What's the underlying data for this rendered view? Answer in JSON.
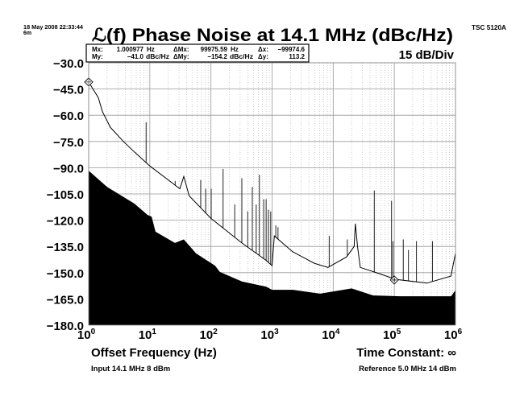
{
  "header": {
    "timestamp_line1": "18 May 2008 22:33:44",
    "timestamp_line2": "6m",
    "instrument": "TSC 5120A",
    "title": "ℒ(f) Phase Noise at 14.1 MHz (dBc/Hz)",
    "scale": "15 dB/Div"
  },
  "marker_box": {
    "mx_label": "Mx:",
    "mx_value": "1.000977",
    "mx_unit": "Hz",
    "my_label": "My:",
    "my_value": "−41.0",
    "my_unit": "dBc/Hz",
    "dmx_label": "ΔMx:",
    "dmx_value": "99975.59",
    "dmx_unit": "Hz",
    "dmy_label": "ΔMy:",
    "dmy_value": "−154.2",
    "dmy_unit": "dBc/Hz",
    "dx_label": "Δx:",
    "dx_value": "−99974.6",
    "dy_label": "Δy:",
    "dy_value": "113.2"
  },
  "footer": {
    "time_constant": "Time Constant: ∞",
    "input": "Input 14.1 MHz 8 dBm",
    "reference": "Reference 5.0 MHz 14 dBm"
  },
  "chart_data": {
    "type": "line",
    "title": "ℒ(f) Phase Noise at 14.1 MHz (dBc/Hz)",
    "xlabel": "Offset Frequency (Hz)",
    "ylabel": "",
    "xscale": "log",
    "xlim": [
      1,
      1000000
    ],
    "ylim": [
      -180,
      -30
    ],
    "grid": true,
    "xticks": [
      {
        "base": "10",
        "exp": "0"
      },
      {
        "base": "10",
        "exp": "1"
      },
      {
        "base": "10",
        "exp": "2"
      },
      {
        "base": "10",
        "exp": "3"
      },
      {
        "base": "10",
        "exp": "4"
      },
      {
        "base": "10",
        "exp": "5"
      },
      {
        "base": "10",
        "exp": "6"
      }
    ],
    "yticks": [
      "−30.0",
      "−45.0",
      "−60.0",
      "−75.0",
      "−90.0",
      "−105.0",
      "−120.0",
      "−135.0",
      "−150.0",
      "−165.0",
      "−180.0"
    ],
    "series": [
      {
        "role": "phase-noise-trace",
        "color": "#000000",
        "points": [
          [
            1,
            -41
          ],
          [
            1.44,
            -50
          ],
          [
            1.68,
            -58
          ],
          [
            2.27,
            -67
          ],
          [
            3.7,
            -75
          ],
          [
            5.6,
            -81
          ],
          [
            10,
            -89
          ],
          [
            26,
            -100
          ],
          [
            31,
            -102
          ],
          [
            36,
            -95
          ],
          [
            44,
            -106
          ],
          [
            100,
            -119
          ],
          [
            320,
            -133
          ],
          [
            800,
            -143
          ],
          [
            1000,
            -146
          ],
          [
            1090,
            -129
          ],
          [
            2160,
            -138
          ],
          [
            4900,
            -144.6
          ],
          [
            8200,
            -147
          ],
          [
            16600,
            -141
          ],
          [
            22000,
            -135
          ],
          [
            23000,
            -122
          ],
          [
            25000,
            -135
          ],
          [
            27700,
            -147
          ],
          [
            56000,
            -150.5
          ],
          [
            105000,
            -153.8
          ],
          [
            340000,
            -156
          ],
          [
            840000,
            -152
          ],
          [
            1000000,
            -139
          ]
        ]
      },
      {
        "role": "noise-floor-fill",
        "color": "#000000",
        "points": [
          [
            1,
            -91.7
          ],
          [
            2,
            -101
          ],
          [
            5.6,
            -110.5
          ],
          [
            9.2,
            -117
          ],
          [
            10.7,
            -118
          ],
          [
            12.4,
            -126.6
          ],
          [
            25.8,
            -133
          ],
          [
            36,
            -131
          ],
          [
            57,
            -139
          ],
          [
            117,
            -146
          ],
          [
            140,
            -149.6
          ],
          [
            320,
            -155
          ],
          [
            800,
            -158
          ],
          [
            1000,
            -159.8
          ],
          [
            2200,
            -159.8
          ],
          [
            6100,
            -162
          ],
          [
            20000,
            -159
          ],
          [
            45000,
            -163
          ],
          [
            125000,
            -163.5
          ],
          [
            850000,
            -163.5
          ],
          [
            1000000,
            -160
          ]
        ]
      }
    ],
    "spurs": [
      [
        8.7,
        -64
      ],
      [
        26,
        -97.6
      ],
      [
        68,
        -97
      ],
      [
        82,
        -102
      ],
      [
        101,
        -102
      ],
      [
        158,
        -90.7
      ],
      [
        245,
        -111
      ],
      [
        320,
        -96
      ],
      [
        400,
        -115
      ],
      [
        475,
        -101
      ],
      [
        550,
        -111
      ],
      [
        620,
        -94
      ],
      [
        730,
        -108
      ],
      [
        800,
        -108
      ],
      [
        870,
        -114
      ],
      [
        950,
        -115
      ],
      [
        1150,
        -123
      ],
      [
        1250,
        -124
      ],
      [
        8600,
        -129
      ],
      [
        17000,
        -131
      ],
      [
        47000,
        -103
      ],
      [
        90000,
        -109
      ],
      [
        95000,
        -132
      ],
      [
        140000,
        -131
      ],
      [
        170000,
        -137
      ],
      [
        230000,
        -132
      ],
      [
        420000,
        -132
      ]
    ],
    "markers": [
      [
        1,
        -41
      ],
      [
        100000,
        -154.2
      ]
    ]
  }
}
